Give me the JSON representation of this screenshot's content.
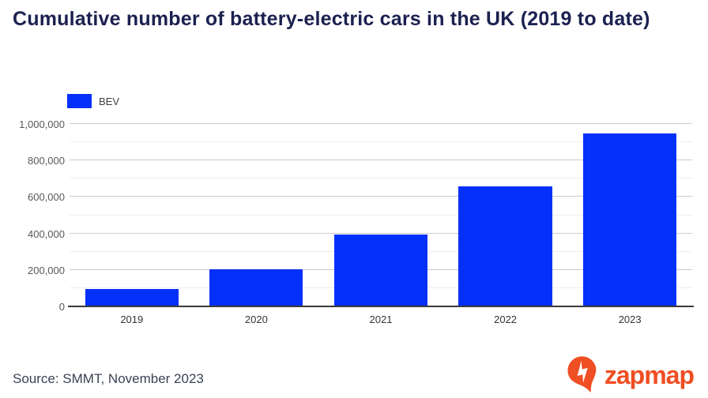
{
  "title": "Cumulative number of battery-electric cars in the UK (2019 to date)",
  "legend": {
    "label": "BEV"
  },
  "source": "Source: SMMT, November 2023",
  "logo": {
    "text": "zapmap"
  },
  "colors": {
    "bar": "#0530fa",
    "title": "#1b2150",
    "brand_orange": "#f04e23",
    "gridline_major": "#cccccc",
    "gridline_minor": "#ededed"
  },
  "chart_data": {
    "type": "bar",
    "title": "Cumulative number of battery-electric cars in the UK (2019 to date)",
    "categories": [
      "2019",
      "2020",
      "2021",
      "2022",
      "2023"
    ],
    "series": [
      {
        "name": "BEV",
        "values": [
          95000,
          205000,
          395000,
          660000,
          950000
        ]
      }
    ],
    "xlabel": "",
    "ylabel": "",
    "ylim": [
      0,
      1000000
    ],
    "yticks": [
      0,
      200000,
      400000,
      600000,
      800000,
      1000000
    ],
    "minor_yticks": [
      100000,
      300000,
      500000,
      700000,
      900000
    ],
    "grid": true,
    "legend_position": "top-left",
    "source": "SMMT, November 2023"
  }
}
